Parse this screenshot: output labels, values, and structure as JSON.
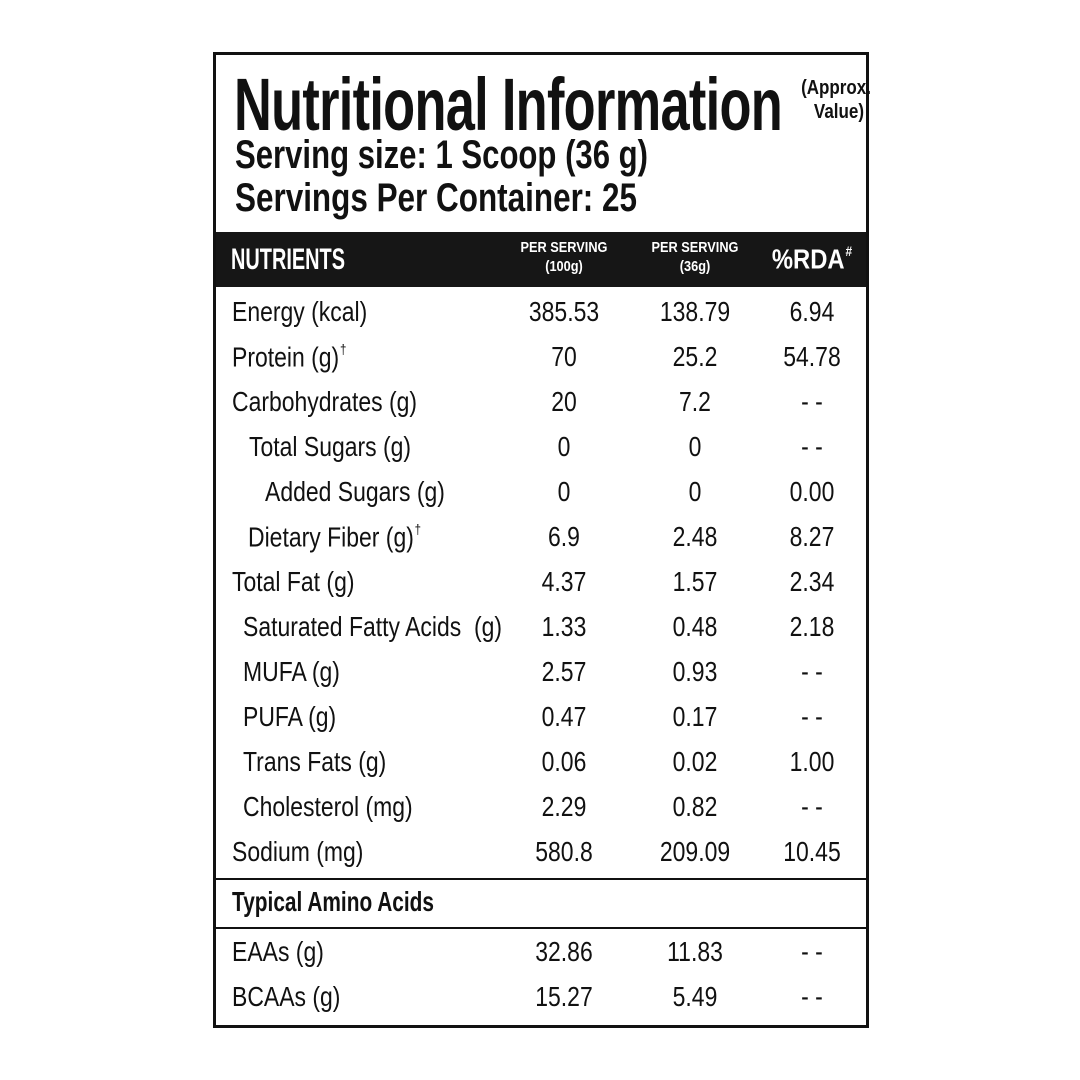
{
  "header": {
    "title": "Nutritional Information",
    "note": "(Approx. Value)",
    "serving_size": "Serving size: 1 Scoop (36 g)",
    "servings_per_container": "Servings Per Container: 25"
  },
  "table": {
    "columns": [
      {
        "label": "NUTRIENTS"
      },
      {
        "label": "PER SERVING",
        "unit": "(100g)"
      },
      {
        "label": "PER SERVING",
        "unit": "(36g)"
      },
      {
        "label": "%RDA",
        "mark": "#"
      }
    ],
    "rows": [
      {
        "nutrient": "Energy (kcal)",
        "values": [
          "385.53",
          "138.79",
          "6.94"
        ]
      },
      {
        "nutrient": "Protein (g)",
        "mark": "†",
        "values": [
          "70",
          "25.2",
          "54.78"
        ]
      },
      {
        "nutrient": "Carbohydrates (g)",
        "values": [
          "20",
          "7.2",
          "- -"
        ]
      },
      {
        "nutrient": "Total Sugars (g)",
        "values": [
          "0",
          "0",
          "- -"
        ]
      },
      {
        "nutrient": "Added Sugars (g)",
        "values": [
          "0",
          "0",
          "0.00"
        ]
      },
      {
        "nutrient": "Dietary Fiber (g)",
        "mark": "†",
        "values": [
          "6.9",
          "2.48",
          "8.27"
        ]
      },
      {
        "nutrient": "Total Fat (g)",
        "values": [
          "4.37",
          "1.57",
          "2.34"
        ]
      },
      {
        "nutrient": "Saturated Fatty Acids  (g)",
        "values": [
          "1.33",
          "0.48",
          "2.18"
        ]
      },
      {
        "nutrient": "MUFA (g)",
        "values": [
          "2.57",
          "0.93",
          "- -"
        ]
      },
      {
        "nutrient": "PUFA (g)",
        "values": [
          "0.47",
          "0.17",
          "- -"
        ]
      },
      {
        "nutrient": "Trans Fats (g)",
        "values": [
          "0.06",
          "0.02",
          "1.00"
        ]
      },
      {
        "nutrient": "Cholesterol (mg)",
        "values": [
          "2.29",
          "0.82",
          "- -"
        ]
      },
      {
        "nutrient": "Sodium (mg)",
        "values": [
          "580.8",
          "209.09",
          "10.45"
        ]
      }
    ]
  },
  "amino_acids": {
    "title": "Typical Amino Acids",
    "rows": [
      {
        "nutrient": "EAAs (g)",
        "values": [
          "32.86",
          "11.83",
          "- -"
        ]
      },
      {
        "nutrient": "BCAAs (g)",
        "values": [
          "15.27",
          "5.49",
          "- -"
        ]
      }
    ]
  }
}
